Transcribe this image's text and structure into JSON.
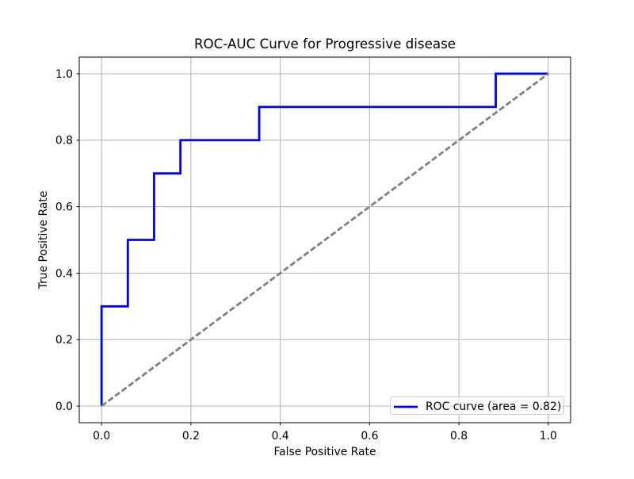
{
  "chart_data": {
    "type": "line",
    "title": "ROC-AUC Curve for Progressive disease",
    "xlabel": "False Positive Rate",
    "ylabel": "True Positive Rate",
    "xlim": [
      -0.05,
      1.05
    ],
    "ylim": [
      -0.05,
      1.05
    ],
    "xticks": [
      "0.0",
      "0.2",
      "0.4",
      "0.6",
      "0.8",
      "1.0"
    ],
    "yticks": [
      "0.0",
      "0.2",
      "0.4",
      "0.6",
      "0.8",
      "1.0"
    ],
    "grid": true,
    "legend_position": "lower right",
    "auc": 0.82,
    "series": [
      {
        "name": "ROC curve (area = 0.82)",
        "slug": "roc-curve",
        "color": "#0000ff",
        "style": "solid",
        "line_width": 2.8,
        "x": [
          0.0,
          0.0,
          0.0588,
          0.0588,
          0.1176,
          0.1176,
          0.1765,
          0.1765,
          0.3529,
          0.3529,
          0.8824,
          0.8824,
          1.0
        ],
        "y": [
          0.0,
          0.3,
          0.3,
          0.5,
          0.5,
          0.7,
          0.7,
          0.8,
          0.8,
          0.9,
          0.9,
          1.0,
          1.0
        ]
      },
      {
        "name": "chance diagonal",
        "slug": "chance-diagonal",
        "color": "#808080",
        "style": "dashed",
        "line_width": 2.8,
        "x": [
          0.0,
          1.0
        ],
        "y": [
          0.0,
          1.0
        ]
      }
    ]
  },
  "legend": {
    "label": "ROC curve (area = 0.82)"
  },
  "colors": {
    "background": "#ffffff",
    "grid": "#b0b0b0",
    "spine": "#000000",
    "roc": "#0000ff",
    "diagonal": "#808080",
    "legend_border": "#cccccc"
  }
}
